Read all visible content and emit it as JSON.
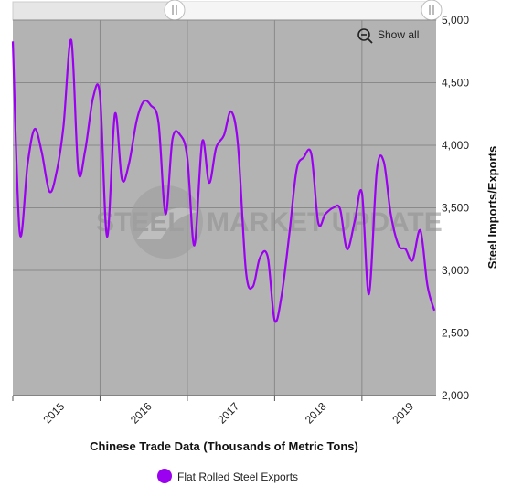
{
  "toolbar": {
    "show_all_label": "Show all"
  },
  "watermark": {
    "text_left": "STEEL",
    "text_right": "MARKET UPDATE"
  },
  "colors": {
    "series": "#9b00f0",
    "plot_bg": "#b3b3b3",
    "grid": "#8a8a8a"
  },
  "chart_data": {
    "type": "line",
    "xlabel": "Chinese Trade Data (Thousands of Metric Tons)",
    "ylabel": "Steel Imports/Exports",
    "ylim": [
      2000,
      5000
    ],
    "yticks": [
      2000,
      2500,
      3000,
      3500,
      4000,
      4500,
      5000
    ],
    "xrange": [
      2015.0,
      2019.85
    ],
    "xticks": [
      2015,
      2016,
      2017,
      2018,
      2019
    ],
    "grid": true,
    "legend": "bottom",
    "series": [
      {
        "name": "Flat Rolled Steel Exports",
        "color": "#9b00f0",
        "x": [
          2015.0,
          2015.08,
          2015.17,
          2015.25,
          2015.33,
          2015.42,
          2015.5,
          2015.58,
          2015.67,
          2015.75,
          2015.83,
          2015.92,
          2016.0,
          2016.08,
          2016.17,
          2016.25,
          2016.33,
          2016.42,
          2016.5,
          2016.58,
          2016.67,
          2016.75,
          2016.83,
          2016.92,
          2017.0,
          2017.08,
          2017.17,
          2017.25,
          2017.33,
          2017.42,
          2017.5,
          2017.58,
          2017.67,
          2017.75,
          2017.83,
          2017.92,
          2018.0,
          2018.08,
          2018.17,
          2018.25,
          2018.33,
          2018.42,
          2018.5,
          2018.58,
          2018.67,
          2018.75,
          2018.83,
          2018.92,
          2019.0,
          2019.08,
          2019.17,
          2019.25,
          2019.33,
          2019.42,
          2019.5,
          2019.58,
          2019.67,
          2019.75,
          2019.83
        ],
        "values": [
          4830,
          3300,
          3850,
          4130,
          3950,
          3630,
          3780,
          4150,
          4840,
          3800,
          3960,
          4380,
          4390,
          3270,
          4250,
          3730,
          3850,
          4200,
          4350,
          4320,
          4180,
          3450,
          4050,
          4080,
          3900,
          3200,
          4030,
          3700,
          3980,
          4080,
          4270,
          4000,
          3000,
          2870,
          3100,
          3110,
          2600,
          2800,
          3300,
          3800,
          3900,
          3930,
          3380,
          3450,
          3500,
          3490,
          3170,
          3400,
          3620,
          2810,
          3790,
          3870,
          3450,
          3200,
          3170,
          3080,
          3320,
          2880,
          2680
        ]
      }
    ]
  }
}
